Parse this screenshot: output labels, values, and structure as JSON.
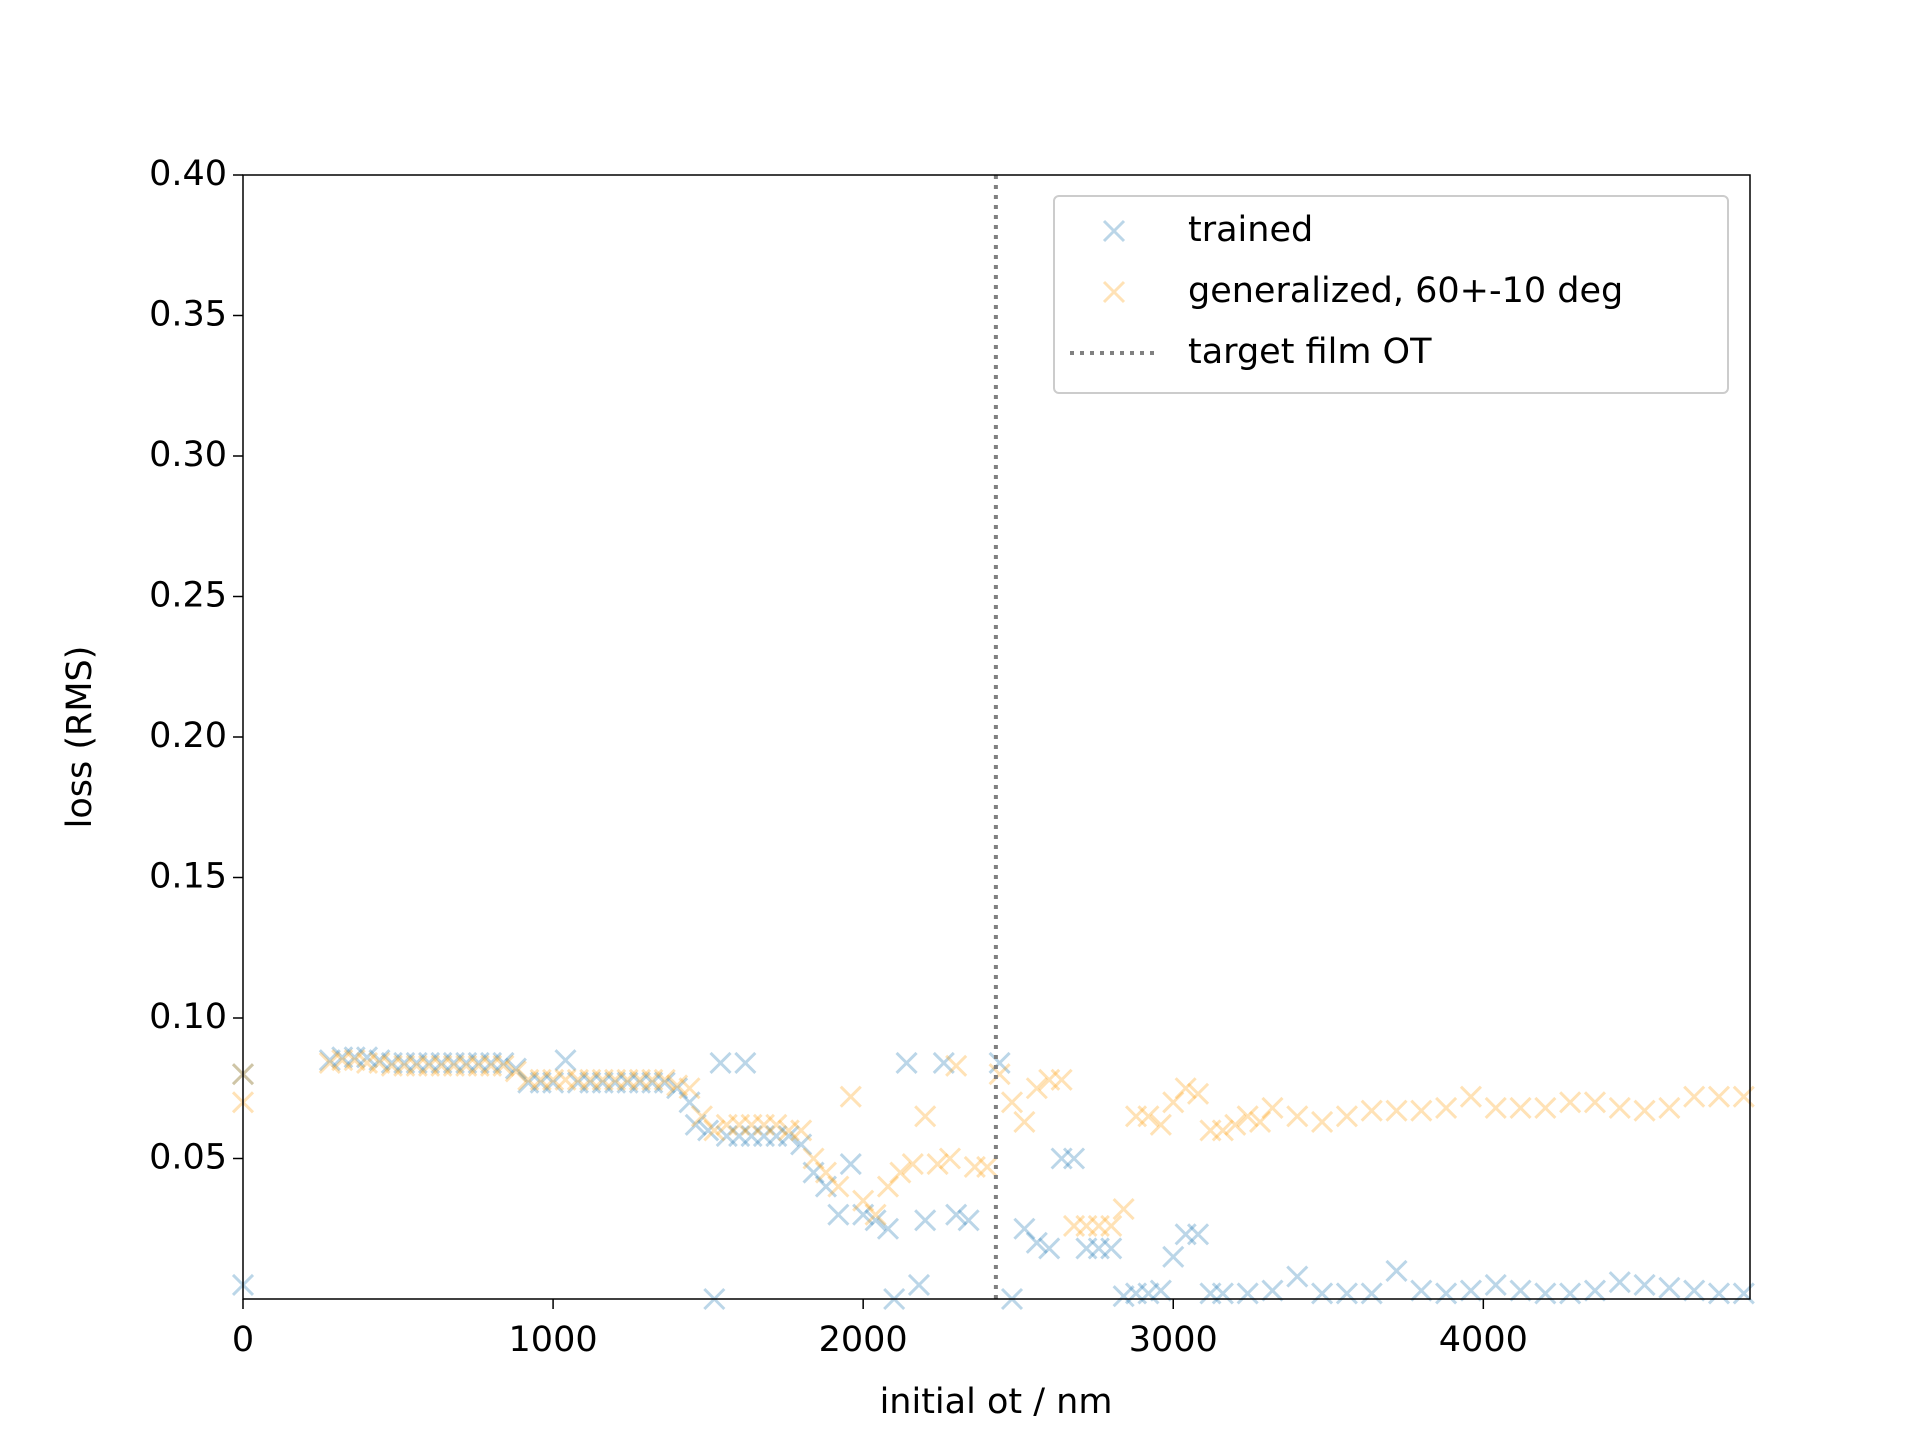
{
  "chart_data": {
    "type": "scatter",
    "xlabel": "initial ot / nm",
    "ylabel": "loss (RMS)",
    "xlim": [
      0,
      4860
    ],
    "ylim": [
      0,
      0.4
    ],
    "xticks": [
      0,
      1000,
      2000,
      3000,
      4000
    ],
    "yticks": [
      {
        "value": 0.05,
        "label": "0.05"
      },
      {
        "value": 0.1,
        "label": "0.10"
      },
      {
        "value": 0.15,
        "label": "0.15"
      },
      {
        "value": 0.2,
        "label": "0.20"
      },
      {
        "value": 0.25,
        "label": "0.25"
      },
      {
        "value": 0.3,
        "label": "0.30"
      },
      {
        "value": 0.35,
        "label": "0.35"
      },
      {
        "value": 0.4,
        "label": "0.40"
      }
    ],
    "legend": "upper right",
    "vline": {
      "x": 2428,
      "label": "target film OT",
      "color": "#808080"
    },
    "series": [
      {
        "name": "trained",
        "color": "#1f77b4",
        "x": [
          0,
          0,
          280,
          320,
          360,
          400,
          440,
          480,
          520,
          560,
          600,
          640,
          680,
          720,
          760,
          800,
          840,
          880,
          920,
          960,
          1000,
          1040,
          1080,
          1120,
          1160,
          1200,
          1240,
          1280,
          1320,
          1360,
          1400,
          1440,
          1460,
          1500,
          1520,
          1540,
          1560,
          1600,
          1620,
          1640,
          1680,
          1720,
          1760,
          1800,
          1840,
          1880,
          1920,
          1960,
          2000,
          2040,
          2080,
          2100,
          2140,
          2180,
          2200,
          2260,
          2300,
          2340,
          2440,
          2480,
          2520,
          2560,
          2600,
          2640,
          2680,
          2720,
          2760,
          2800,
          2840,
          2880,
          2920,
          2960,
          3000,
          3040,
          3080,
          3120,
          3160,
          3240,
          3320,
          3400,
          3480,
          3560,
          3640,
          3720,
          3800,
          3880,
          3960,
          4040,
          4120,
          4200,
          4280,
          4360,
          4440,
          4520,
          4600,
          4680,
          4760,
          4840
        ],
        "values": [
          0.005,
          0.08,
          0.085,
          0.086,
          0.086,
          0.086,
          0.085,
          0.084,
          0.084,
          0.084,
          0.084,
          0.084,
          0.084,
          0.084,
          0.084,
          0.084,
          0.084,
          0.082,
          0.077,
          0.077,
          0.077,
          0.085,
          0.077,
          0.077,
          0.077,
          0.077,
          0.077,
          0.077,
          0.077,
          0.077,
          0.075,
          0.07,
          0.062,
          0.06,
          0,
          0.084,
          0.058,
          0.058,
          0.084,
          0.058,
          0.058,
          0.058,
          0.058,
          0.055,
          0.045,
          0.04,
          0.03,
          0.048,
          0.03,
          0.028,
          0.025,
          0,
          0.084,
          0.005,
          0.028,
          0.084,
          0.03,
          0.028,
          0.084,
          0,
          0.025,
          0.02,
          0.018,
          0.05,
          0.05,
          0.018,
          0.018,
          0.018,
          0.001,
          0.002,
          0.002,
          0.003,
          0.015,
          0.023,
          0.023,
          0.002,
          0.002,
          0.002,
          0.003,
          0.008,
          0.002,
          0.002,
          0.002,
          0.01,
          0.003,
          0.002,
          0.003,
          0.005,
          0.003,
          0.002,
          0.002,
          0.003,
          0.006,
          0.005,
          0.004,
          0.003,
          0.002,
          0.002
        ]
      },
      {
        "name": "generalized, 60+-10 deg",
        "color": "#ff9f0e",
        "x": [
          0,
          0,
          280,
          320,
          360,
          400,
          440,
          480,
          520,
          560,
          600,
          640,
          680,
          720,
          760,
          800,
          840,
          880,
          920,
          960,
          1000,
          1040,
          1080,
          1120,
          1160,
          1200,
          1240,
          1280,
          1320,
          1360,
          1400,
          1440,
          1480,
          1520,
          1560,
          1600,
          1640,
          1680,
          1720,
          1760,
          1800,
          1840,
          1880,
          1920,
          1960,
          2000,
          2040,
          2080,
          2120,
          2160,
          2200,
          2240,
          2280,
          2300,
          2360,
          2400,
          2440,
          2480,
          2520,
          2560,
          2600,
          2640,
          2680,
          2720,
          2760,
          2800,
          2840,
          2880,
          2920,
          2960,
          3000,
          3040,
          3080,
          3120,
          3160,
          3200,
          3240,
          3280,
          3320,
          3400,
          3480,
          3560,
          3640,
          3720,
          3800,
          3880,
          3960,
          4040,
          4120,
          4200,
          4280,
          4360,
          4440,
          4520,
          4600,
          4680,
          4760,
          4840
        ],
        "values": [
          0.07,
          0.08,
          0.084,
          0.085,
          0.085,
          0.084,
          0.084,
          0.083,
          0.083,
          0.083,
          0.083,
          0.083,
          0.083,
          0.083,
          0.083,
          0.083,
          0.083,
          0.081,
          0.078,
          0.078,
          0.078,
          0.078,
          0.078,
          0.078,
          0.078,
          0.078,
          0.078,
          0.078,
          0.078,
          0.078,
          0.076,
          0.075,
          0.065,
          0.06,
          0.062,
          0.062,
          0.062,
          0.062,
          0.062,
          0.06,
          0.06,
          0.05,
          0.045,
          0.04,
          0.072,
          0.035,
          0.03,
          0.04,
          0.045,
          0.048,
          0.065,
          0.048,
          0.05,
          0.083,
          0.047,
          0.047,
          0.08,
          0.07,
          0.063,
          0.075,
          0.078,
          0.078,
          0.026,
          0.026,
          0.026,
          0.026,
          0.032,
          0.065,
          0.065,
          0.062,
          0.07,
          0.075,
          0.073,
          0.06,
          0.06,
          0.062,
          0.065,
          0.063,
          0.068,
          0.065,
          0.063,
          0.065,
          0.067,
          0.067,
          0.067,
          0.068,
          0.072,
          0.068,
          0.068,
          0.068,
          0.07,
          0.07,
          0.068,
          0.067,
          0.068,
          0.072,
          0.072,
          0.072
        ]
      }
    ]
  }
}
